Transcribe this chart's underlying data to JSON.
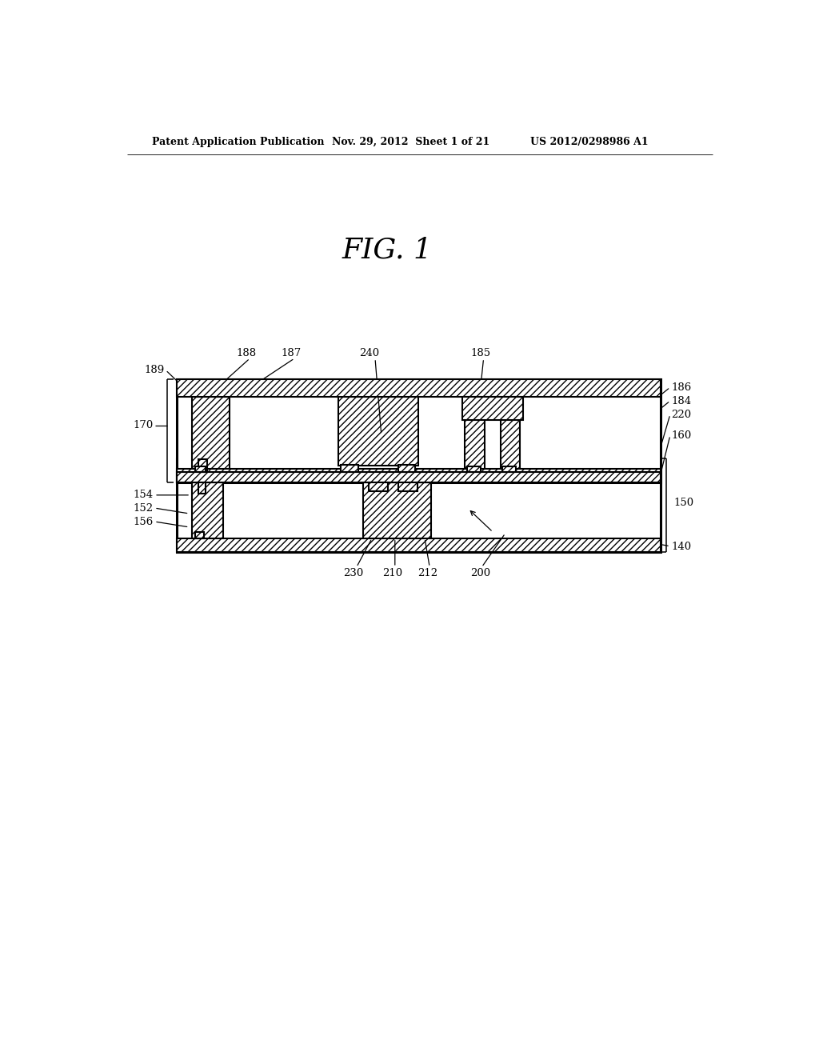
{
  "bg_color": "#ffffff",
  "line_color": "#000000",
  "header_left": "Patent Application Publication",
  "header_mid": "Nov. 29, 2012  Sheet 1 of 21",
  "header_right": "US 2012/0298986 A1",
  "fig_title": "FIG. 1"
}
